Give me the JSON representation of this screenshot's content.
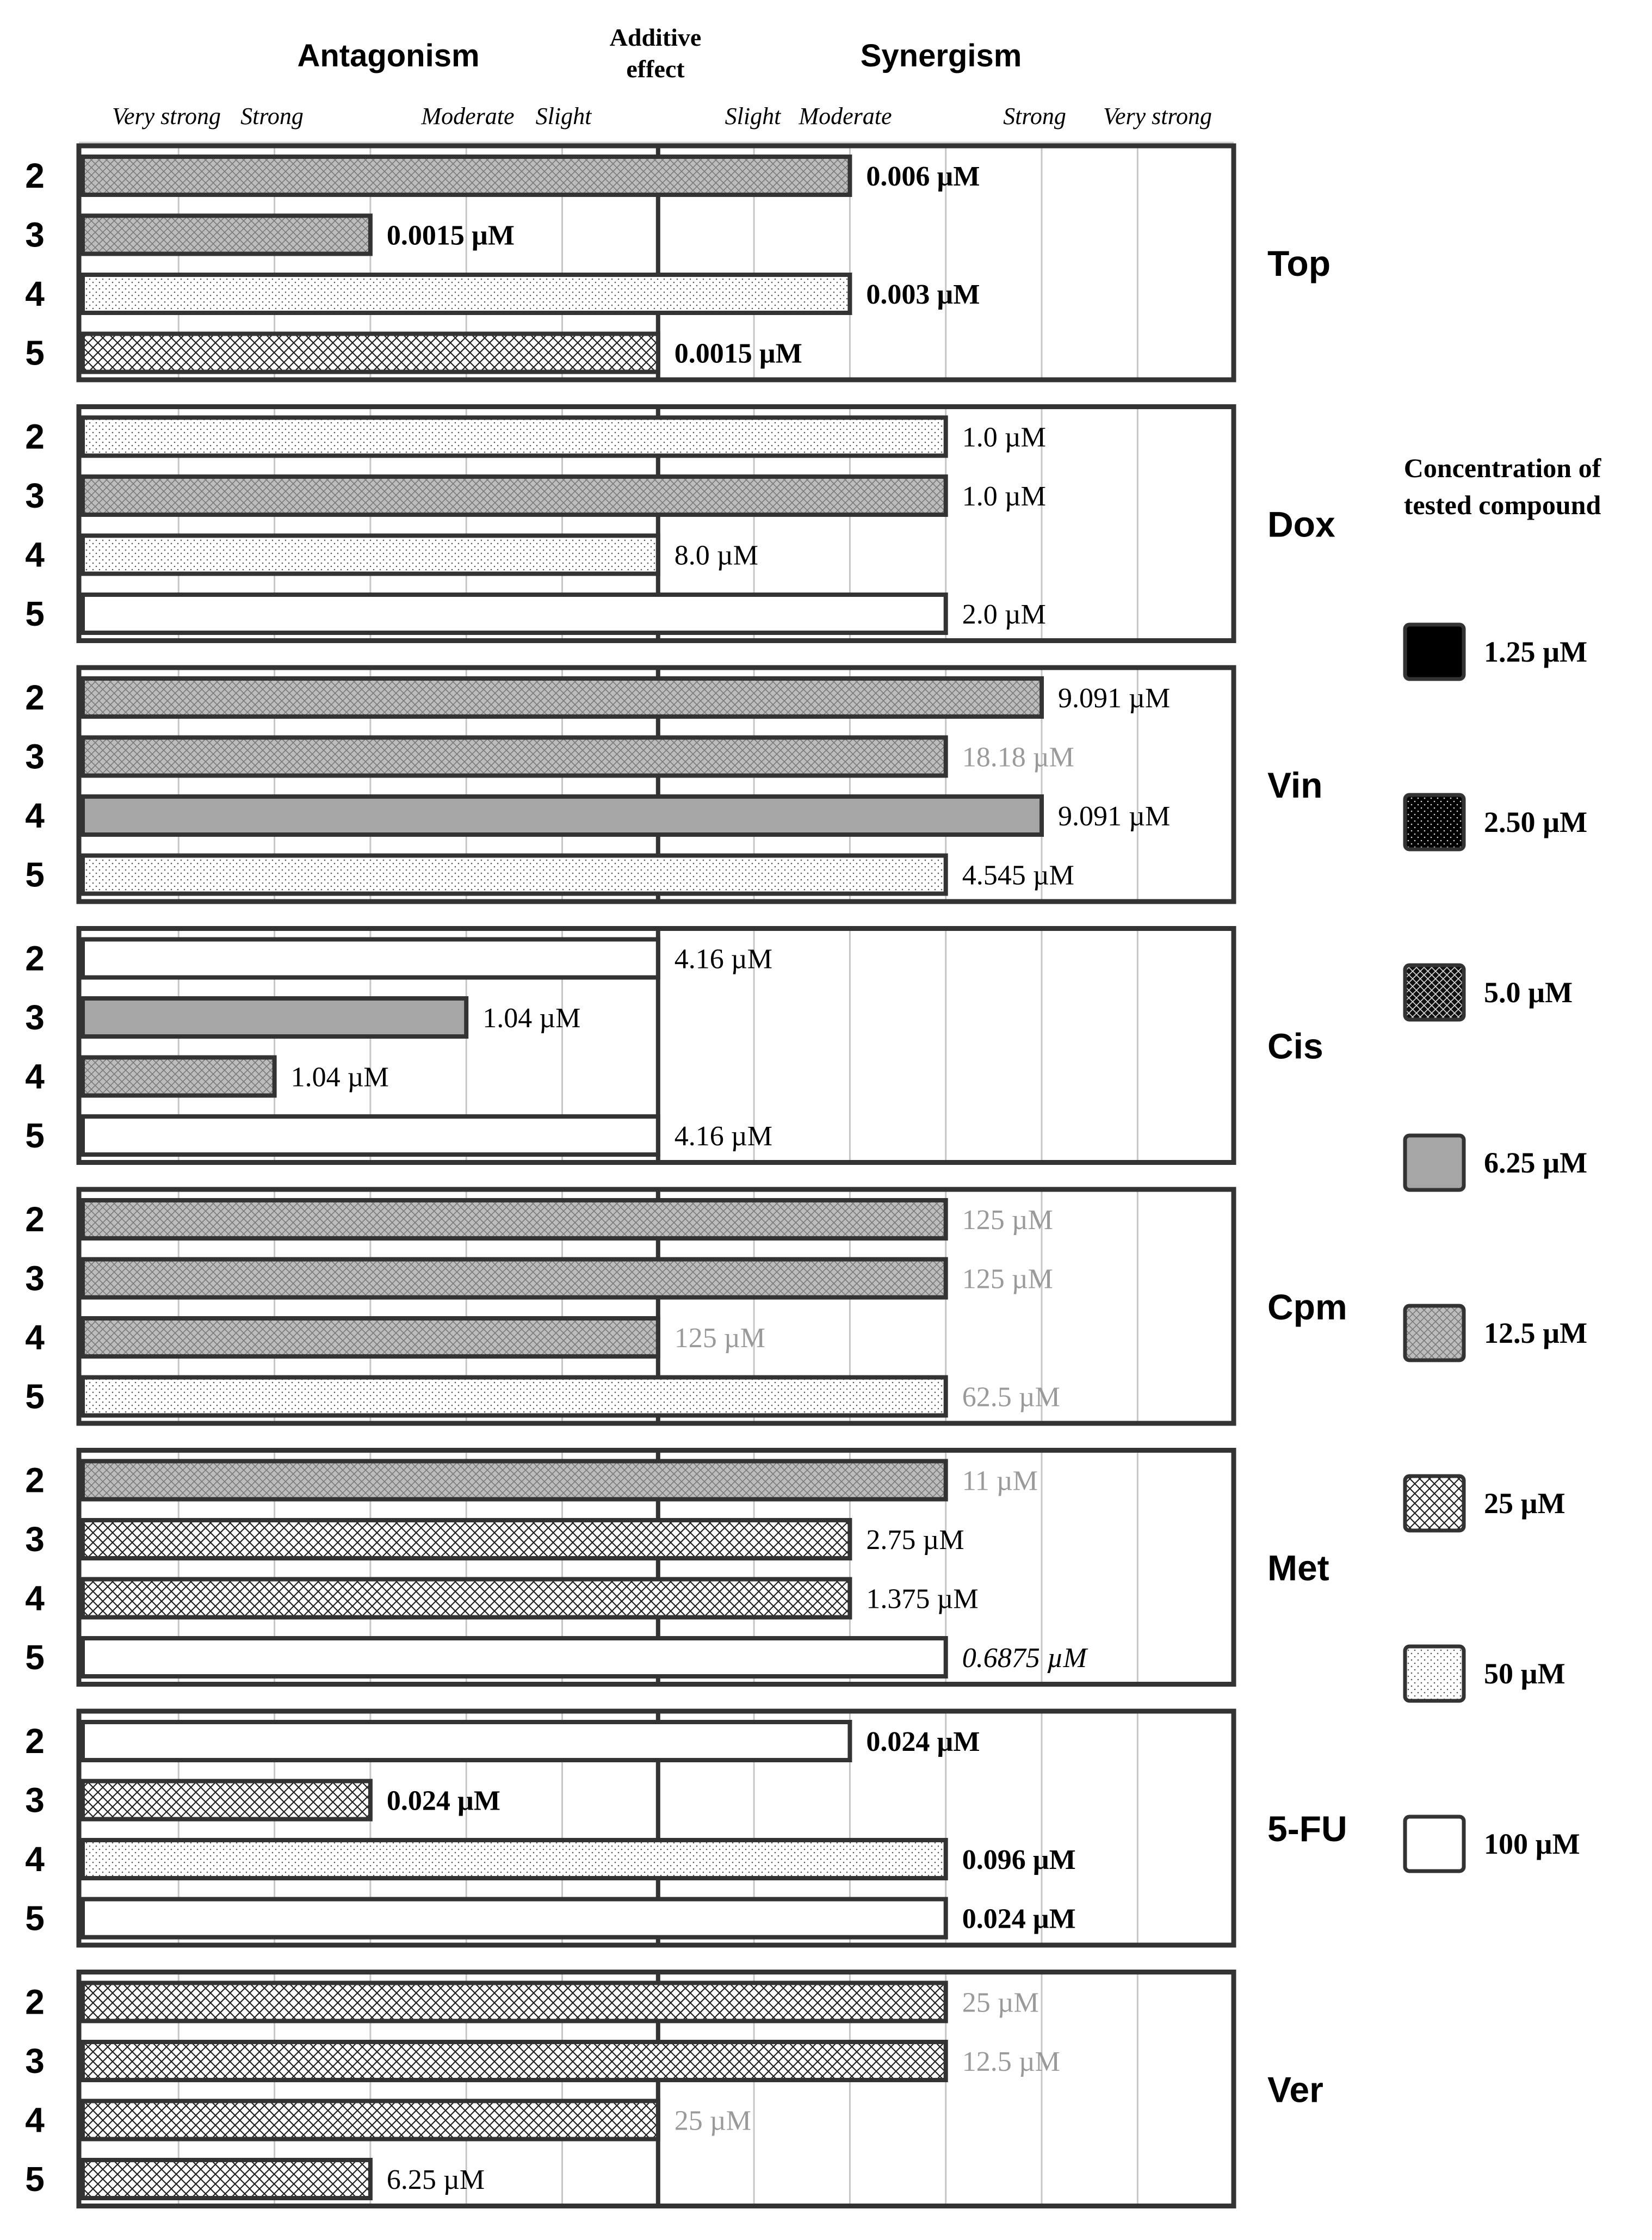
{
  "chart_data": {
    "type": "bar",
    "orientation": "horizontal",
    "axis_headers": {
      "antagonism": "Antagonism",
      "additive": [
        "Additive",
        "effect"
      ],
      "synergism": "Synergism"
    },
    "levels": [
      "Very strong",
      "Strong",
      "Moderate",
      "Slight",
      "Slight",
      "Moderate",
      "Strong",
      "Very strong"
    ],
    "groups": [
      {
        "name": "Top",
        "bars": [
          {
            "row": "2",
            "value": 8,
            "conc": "12.5 µM",
            "label": "0.006 µM",
            "style": "bold"
          },
          {
            "row": "3",
            "value": 3,
            "conc": "12.5 µM",
            "label": "0.0015 µM",
            "style": "bold"
          },
          {
            "row": "4",
            "value": 8,
            "conc": "50 µM",
            "label": "0.003 µM",
            "style": "bold"
          },
          {
            "row": "5",
            "value": 6,
            "conc": "25 µM",
            "label": "0.0015 µM",
            "style": "bold"
          }
        ]
      },
      {
        "name": "Dox",
        "bars": [
          {
            "row": "2",
            "value": 9,
            "conc": "50 µM",
            "label": "1.0 µM",
            "style": "normal"
          },
          {
            "row": "3",
            "value": 9,
            "conc": "12.5 µM",
            "label": "1.0 µM",
            "style": "normal"
          },
          {
            "row": "4",
            "value": 6,
            "conc": "50 µM",
            "label": "8.0 µM",
            "style": "normal"
          },
          {
            "row": "5",
            "value": 9,
            "conc": "100 µM",
            "label": "2.0 µM",
            "style": "normal"
          }
        ]
      },
      {
        "name": "Vin",
        "bars": [
          {
            "row": "2",
            "value": 10,
            "conc": "12.5 µM",
            "label": "9.091 µM",
            "style": "normal"
          },
          {
            "row": "3",
            "value": 9,
            "conc": "12.5 µM",
            "label": "18.18 µM",
            "style": "gray"
          },
          {
            "row": "4",
            "value": 10,
            "conc": "6.25 µM",
            "label": "9.091 µM",
            "style": "normal"
          },
          {
            "row": "5",
            "value": 9,
            "conc": "50 µM",
            "label": "4.545 µM",
            "style": "normal"
          }
        ]
      },
      {
        "name": "Cis",
        "bars": [
          {
            "row": "2",
            "value": 6,
            "conc": "100 µM",
            "label": "4.16 µM",
            "style": "normal"
          },
          {
            "row": "3",
            "value": 4,
            "conc": "6.25 µM",
            "label": "1.04 µM",
            "style": "normal"
          },
          {
            "row": "4",
            "value": 2,
            "conc": "12.5 µM",
            "label": "1.04 µM",
            "style": "normal"
          },
          {
            "row": "5",
            "value": 6,
            "conc": "100 µM",
            "label": "4.16 µM",
            "style": "normal"
          }
        ]
      },
      {
        "name": "Cpm",
        "bars": [
          {
            "row": "2",
            "value": 9,
            "conc": "12.5 µM",
            "label": "125 µM",
            "style": "gray"
          },
          {
            "row": "3",
            "value": 9,
            "conc": "12.5 µM",
            "label": "125 µM",
            "style": "gray"
          },
          {
            "row": "4",
            "value": 6,
            "conc": "12.5 µM",
            "label": "125 µM",
            "style": "gray"
          },
          {
            "row": "5",
            "value": 9,
            "conc": "50 µM",
            "label": "62.5 µM",
            "style": "gray"
          }
        ]
      },
      {
        "name": "Met",
        "bars": [
          {
            "row": "2",
            "value": 9,
            "conc": "12.5 µM",
            "label": "11 µM",
            "style": "gray"
          },
          {
            "row": "3",
            "value": 8,
            "conc": "25 µM",
            "label": "2.75 µM",
            "style": "normal"
          },
          {
            "row": "4",
            "value": 8,
            "conc": "25 µM",
            "label": "1.375 µM",
            "style": "normal"
          },
          {
            "row": "5",
            "value": 9,
            "conc": "100 µM",
            "label": "0.6875 µM",
            "style": "italic"
          }
        ]
      },
      {
        "name": "5-FU",
        "bars": [
          {
            "row": "2",
            "value": 8,
            "conc": "100 µM",
            "label": "0.024 µM",
            "style": "bold"
          },
          {
            "row": "3",
            "value": 3,
            "conc": "25 µM",
            "label": "0.024 µM",
            "style": "bold"
          },
          {
            "row": "4",
            "value": 9,
            "conc": "50 µM",
            "label": "0.096 µM",
            "style": "bold"
          },
          {
            "row": "5",
            "value": 9,
            "conc": "100 µM",
            "label": "0.024 µM",
            "style": "bold"
          }
        ]
      },
      {
        "name": "Ver",
        "bars": [
          {
            "row": "2",
            "value": 9,
            "conc": "25 µM",
            "label": "25 µM",
            "style": "gray"
          },
          {
            "row": "3",
            "value": 9,
            "conc": "25 µM",
            "label": "12.5 µM",
            "style": "gray"
          },
          {
            "row": "4",
            "value": 6,
            "conc": "25 µM",
            "label": "25 µM",
            "style": "gray"
          },
          {
            "row": "5",
            "value": 3,
            "conc": "25 µM",
            "label": "6.25 µM",
            "style": "normal"
          }
        ]
      }
    ],
    "legend": {
      "title": [
        "Concentration of",
        "tested compound"
      ],
      "items": [
        {
          "label": "1.25 µM",
          "pattern": "solid-black"
        },
        {
          "label": "2.50 µM",
          "pattern": "dots-on-black"
        },
        {
          "label": "5.0 µM",
          "pattern": "cross-on-black"
        },
        {
          "label": "6.25 µM",
          "pattern": "solid-gray"
        },
        {
          "label": "12.5 µM",
          "pattern": "cross-on-gray"
        },
        {
          "label": "25 µM",
          "pattern": "cross-on-white"
        },
        {
          "label": "50 µM",
          "pattern": "dots-on-white"
        },
        {
          "label": "100 µM",
          "pattern": "white"
        }
      ]
    },
    "scale": {
      "min": 0,
      "max": 12,
      "additive_at": 6
    }
  }
}
